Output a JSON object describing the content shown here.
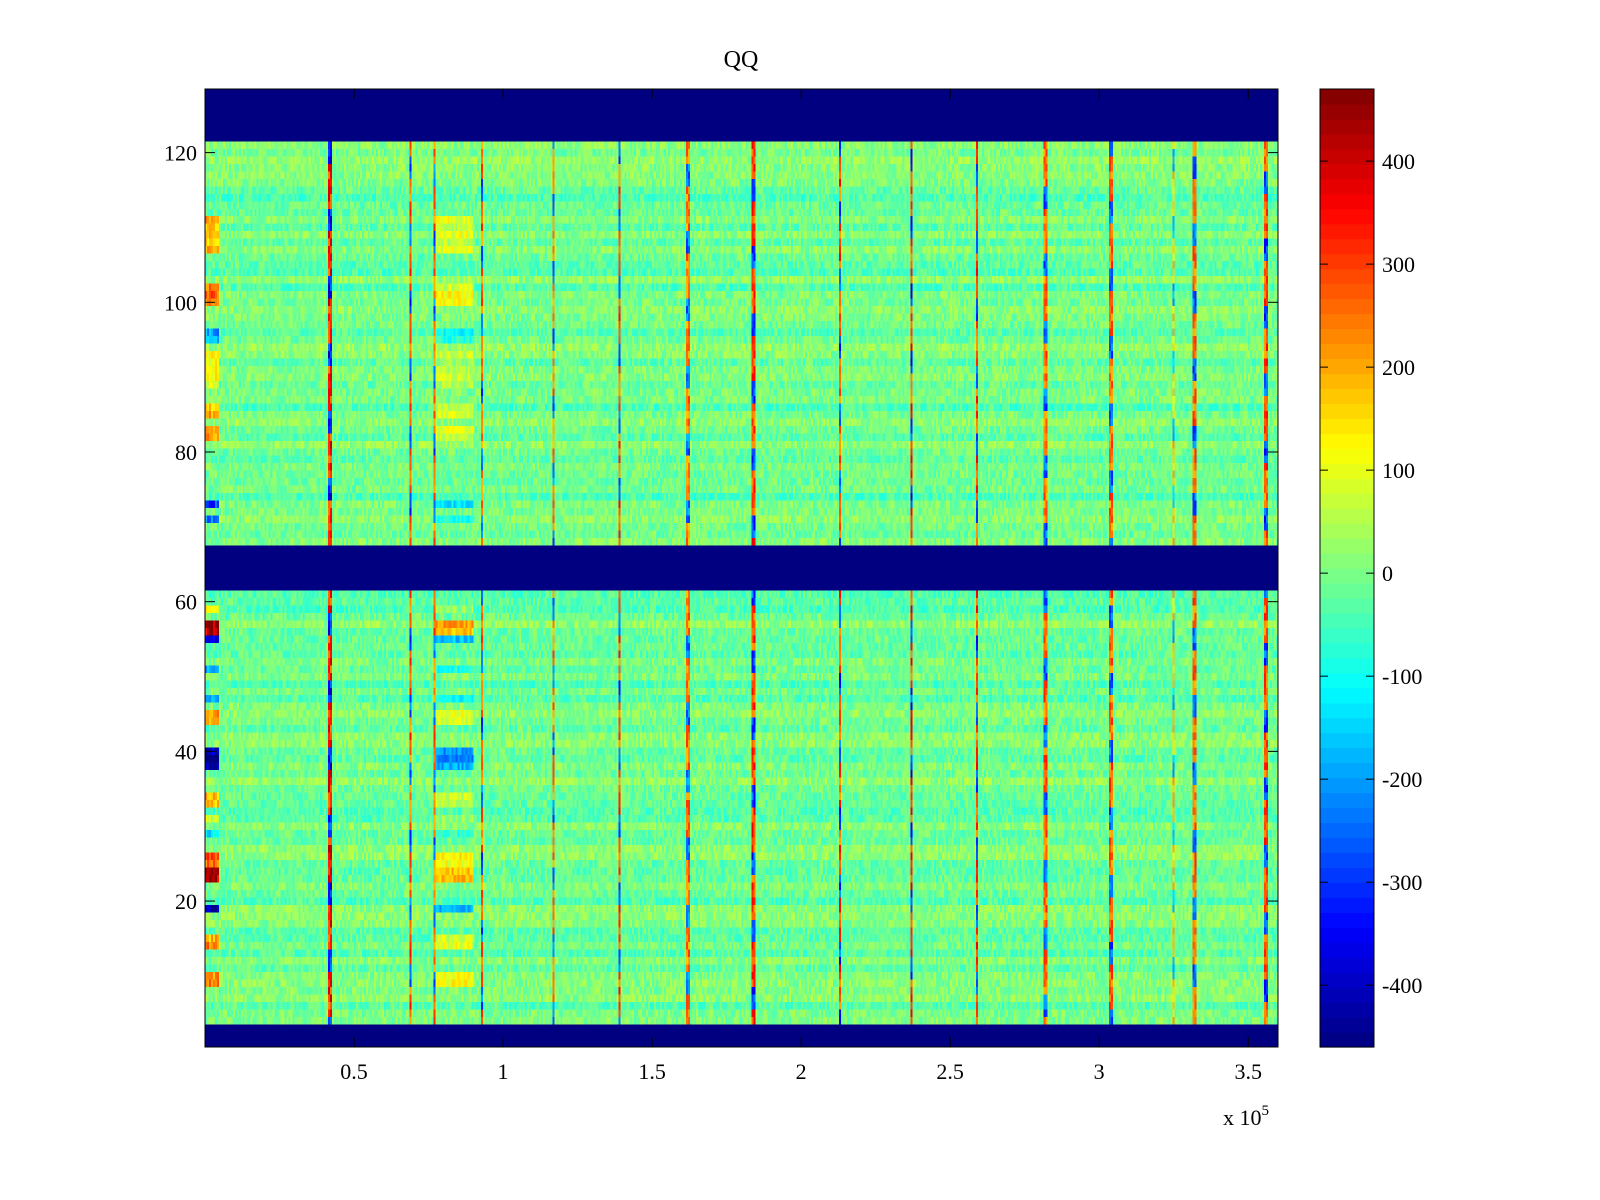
{
  "chart_data": {
    "type": "heatmap",
    "title": "QQ",
    "xlabel": "",
    "ylabel": "",
    "x_multiplier_label": "x 10",
    "x_multiplier_exponent": "5",
    "xlim": [
      0,
      3.6
    ],
    "ylim": [
      0.5,
      128.5
    ],
    "xticks": [
      0.5,
      1,
      1.5,
      2,
      2.5,
      3,
      3.5
    ],
    "xtick_labels": [
      "0.5",
      "1",
      "1.5",
      "2",
      "2.5",
      "3",
      "3.5"
    ],
    "yticks": [
      20,
      40,
      60,
      80,
      100,
      120
    ],
    "ytick_labels": [
      "20",
      "40",
      "60",
      "80",
      "100",
      "120"
    ],
    "colorbar": {
      "colormap": "jet",
      "clim": [
        -460,
        470
      ],
      "ticks": [
        -400,
        -300,
        -200,
        -100,
        0,
        100,
        200,
        300,
        400
      ],
      "tick_labels": [
        "-400",
        "-300",
        "-200",
        "-100",
        "0",
        "100",
        "200",
        "300",
        "400"
      ]
    },
    "background_value": -10,
    "masked_value": -460,
    "masked_row_ranges": [
      [
        1,
        3
      ],
      [
        62,
        67
      ],
      [
        122,
        128
      ]
    ],
    "row_offsets_early": [
      {
        "rows": [
          9,
          10
        ],
        "value": 230
      },
      {
        "rows": [
          14,
          15
        ],
        "value": 230
      },
      {
        "rows": [
          19,
          19
        ],
        "value": -420
      },
      {
        "rows": [
          23,
          24
        ],
        "value": 450
      },
      {
        "rows": [
          25,
          26
        ],
        "value": 280
      },
      {
        "rows": [
          29,
          29
        ],
        "value": -120
      },
      {
        "rows": [
          31,
          31
        ],
        "value": 120
      },
      {
        "rows": [
          33,
          34
        ],
        "value": 190
      },
      {
        "rows": [
          38,
          40
        ],
        "value": -430
      },
      {
        "rows": [
          44,
          45
        ],
        "value": 190
      },
      {
        "rows": [
          47,
          47
        ],
        "value": -150
      },
      {
        "rows": [
          51,
          51
        ],
        "value": -160
      },
      {
        "rows": [
          55,
          55
        ],
        "value": -330
      },
      {
        "rows": [
          56,
          57
        ],
        "value": 420
      },
      {
        "rows": [
          59,
          59
        ],
        "value": 160
      },
      {
        "rows": [
          71,
          71
        ],
        "value": -240
      },
      {
        "rows": [
          73,
          73
        ],
        "value": -300
      },
      {
        "rows": [
          82,
          83
        ],
        "value": 230
      },
      {
        "rows": [
          85,
          86
        ],
        "value": 210
      },
      {
        "rows": [
          89,
          93
        ],
        "value": 120
      },
      {
        "rows": [
          95,
          96
        ],
        "value": -160
      },
      {
        "rows": [
          100,
          102
        ],
        "value": 260
      },
      {
        "rows": [
          107,
          111
        ],
        "value": 190
      }
    ],
    "early_region_x_end": 0.047,
    "vertical_events": [
      {
        "x": 0.42,
        "value": 380
      },
      {
        "x": 0.69,
        "value": 320
      },
      {
        "x": 0.77,
        "value": 300
      },
      {
        "x": 0.93,
        "value": 300
      },
      {
        "x": 1.17,
        "value": 280
      },
      {
        "x": 1.39,
        "value": 320
      },
      {
        "x": 1.62,
        "value": 280
      },
      {
        "x": 1.84,
        "value": 340
      },
      {
        "x": 2.13,
        "value": 330
      },
      {
        "x": 2.37,
        "value": 360
      },
      {
        "x": 2.59,
        "value": 330
      },
      {
        "x": 2.82,
        "value": 300
      },
      {
        "x": 3.04,
        "value": 300
      },
      {
        "x": 3.25,
        "value": 200
      },
      {
        "x": 3.32,
        "value": 300
      },
      {
        "x": 3.56,
        "value": 320
      }
    ]
  }
}
